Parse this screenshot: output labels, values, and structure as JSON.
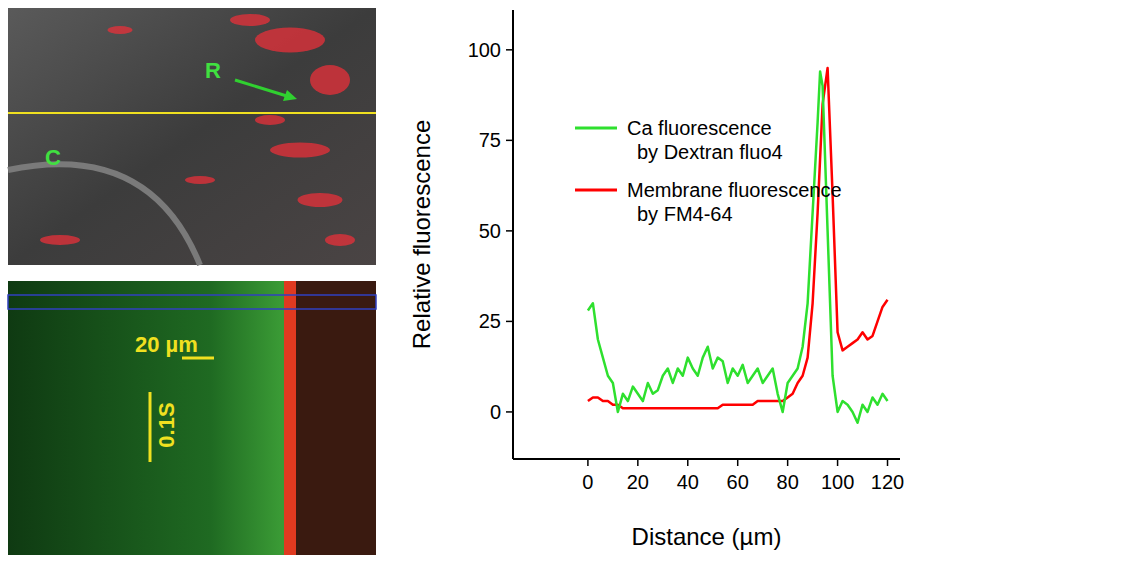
{
  "chart_data": {
    "type": "line",
    "x": [
      0,
      2,
      4,
      6,
      8,
      10,
      12,
      14,
      16,
      18,
      20,
      22,
      24,
      26,
      28,
      30,
      32,
      34,
      36,
      38,
      40,
      42,
      44,
      46,
      48,
      50,
      52,
      54,
      56,
      58,
      60,
      62,
      64,
      66,
      68,
      70,
      72,
      74,
      76,
      78,
      80,
      82,
      84,
      86,
      88,
      90,
      92,
      93,
      94,
      96,
      98,
      100,
      102,
      104,
      106,
      108,
      110,
      112,
      114,
      116,
      118,
      120
    ],
    "series": [
      {
        "name": "Ca fluorescence\nby Dextran fluo4",
        "color": "#2ee02e",
        "values": [
          28,
          30,
          20,
          15,
          10,
          8,
          0,
          5,
          3,
          7,
          5,
          3,
          8,
          5,
          6,
          10,
          12,
          8,
          12,
          10,
          15,
          12,
          10,
          15,
          18,
          12,
          15,
          14,
          8,
          12,
          10,
          13,
          8,
          10,
          12,
          8,
          10,
          12,
          5,
          0,
          8,
          10,
          12,
          18,
          30,
          55,
          80,
          94,
          90,
          50,
          10,
          0,
          3,
          2,
          0,
          -3,
          2,
          0,
          4,
          2,
          5,
          3
        ]
      },
      {
        "name": "Membrane fluorescence\nby FM4-64",
        "color": "#ff0000",
        "values": [
          3,
          4,
          4,
          3,
          3,
          2,
          2,
          1,
          1,
          1,
          1,
          1,
          1,
          1,
          1,
          1,
          1,
          1,
          1,
          1,
          1,
          1,
          1,
          1,
          1,
          1,
          1,
          2,
          2,
          2,
          2,
          2,
          2,
          2,
          3,
          3,
          3,
          3,
          3,
          3,
          4,
          5,
          8,
          10,
          15,
          30,
          55,
          70,
          85,
          95,
          60,
          22,
          17,
          18,
          19,
          20,
          22,
          20,
          21,
          25,
          29,
          31
        ]
      }
    ],
    "x_label": "Distance (µm)",
    "y_label": "Relative fluorescence",
    "xlim": [
      -30,
      125
    ],
    "ylim": [
      -13,
      111
    ],
    "xticks": [
      0,
      20,
      40,
      60,
      80,
      100,
      120
    ],
    "yticks": [
      0,
      25,
      50,
      75,
      100
    ],
    "legend": "upper left",
    "grid": false
  },
  "panels": {
    "image_top": {
      "labels": [
        "R",
        "C"
      ]
    },
    "image_bottom": {
      "scale_length": "20 µm",
      "scale_time": "0.1S"
    }
  }
}
